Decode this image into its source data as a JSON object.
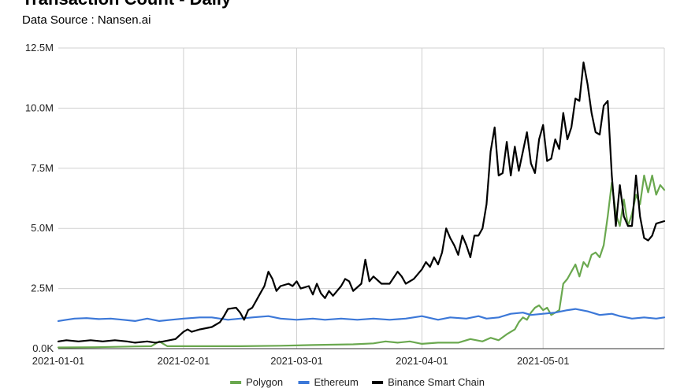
{
  "chart_data": {
    "type": "line",
    "title": "Transaction Count - Daily",
    "subtitle": "Data Source : Nansen.ai",
    "xlabel": "",
    "ylabel": "",
    "x_range": [
      "2021-01-01",
      "2021-05-31"
    ],
    "ylim": [
      0,
      12500000
    ],
    "y_ticks": [
      0,
      2500000,
      5000000,
      7500000,
      10000000,
      12500000
    ],
    "y_tick_labels": [
      "0.0K",
      "2.5M",
      "5.0M",
      "7.5M",
      "10.0M",
      "12.5M"
    ],
    "x_ticks": [
      "2021-01-01",
      "2021-02-01",
      "2021-03-01",
      "2021-04-01",
      "2021-05-01"
    ],
    "x_tick_labels": [
      "2021-01-01",
      "2021-02-01",
      "2021-03-01",
      "2021-04-01",
      "2021-05-01"
    ],
    "grid": true,
    "legend_position": "bottom",
    "series": [
      {
        "name": "Polygon",
        "color": "#6aa84f",
        "points": [
          [
            "2021-01-01",
            50000
          ],
          [
            "2021-01-10",
            60000
          ],
          [
            "2021-01-20",
            90000
          ],
          [
            "2021-01-24",
            100000
          ],
          [
            "2021-01-26",
            300000
          ],
          [
            "2021-01-27",
            200000
          ],
          [
            "2021-01-28",
            100000
          ],
          [
            "2021-02-05",
            100000
          ],
          [
            "2021-02-15",
            100000
          ],
          [
            "2021-02-25",
            120000
          ],
          [
            "2021-03-05",
            150000
          ],
          [
            "2021-03-15",
            180000
          ],
          [
            "2021-03-20",
            220000
          ],
          [
            "2021-03-23",
            300000
          ],
          [
            "2021-03-26",
            250000
          ],
          [
            "2021-03-29",
            300000
          ],
          [
            "2021-04-01",
            200000
          ],
          [
            "2021-04-05",
            250000
          ],
          [
            "2021-04-10",
            250000
          ],
          [
            "2021-04-13",
            400000
          ],
          [
            "2021-04-16",
            300000
          ],
          [
            "2021-04-18",
            450000
          ],
          [
            "2021-04-20",
            350000
          ],
          [
            "2021-04-22",
            600000
          ],
          [
            "2021-04-24",
            800000
          ],
          [
            "2021-04-25",
            1100000
          ],
          [
            "2021-04-26",
            1300000
          ],
          [
            "2021-04-27",
            1200000
          ],
          [
            "2021-04-28",
            1500000
          ],
          [
            "2021-04-29",
            1700000
          ],
          [
            "2021-04-30",
            1800000
          ],
          [
            "2021-05-01",
            1600000
          ],
          [
            "2021-05-02",
            1700000
          ],
          [
            "2021-05-03",
            1400000
          ],
          [
            "2021-05-04",
            1500000
          ],
          [
            "2021-05-05",
            1600000
          ],
          [
            "2021-05-06",
            2700000
          ],
          [
            "2021-05-07",
            2900000
          ],
          [
            "2021-05-08",
            3200000
          ],
          [
            "2021-05-09",
            3500000
          ],
          [
            "2021-05-10",
            3000000
          ],
          [
            "2021-05-11",
            3600000
          ],
          [
            "2021-05-12",
            3400000
          ],
          [
            "2021-05-13",
            3900000
          ],
          [
            "2021-05-14",
            4000000
          ],
          [
            "2021-05-15",
            3800000
          ],
          [
            "2021-05-16",
            4300000
          ],
          [
            "2021-05-17",
            5500000
          ],
          [
            "2021-05-18",
            6900000
          ],
          [
            "2021-05-19",
            5600000
          ],
          [
            "2021-05-20",
            5100000
          ],
          [
            "2021-05-21",
            6200000
          ],
          [
            "2021-05-22",
            5100000
          ],
          [
            "2021-05-23",
            5600000
          ],
          [
            "2021-05-24",
            6400000
          ],
          [
            "2021-05-25",
            6000000
          ],
          [
            "2021-05-26",
            7200000
          ],
          [
            "2021-05-27",
            6500000
          ],
          [
            "2021-05-28",
            7200000
          ],
          [
            "2021-05-29",
            6400000
          ],
          [
            "2021-05-30",
            6800000
          ],
          [
            "2021-05-31",
            6600000
          ]
        ]
      },
      {
        "name": "Ethereum",
        "color": "#3c78d8",
        "points": [
          [
            "2021-01-01",
            1150000
          ],
          [
            "2021-01-03",
            1200000
          ],
          [
            "2021-01-05",
            1250000
          ],
          [
            "2021-01-08",
            1270000
          ],
          [
            "2021-01-11",
            1230000
          ],
          [
            "2021-01-14",
            1250000
          ],
          [
            "2021-01-17",
            1200000
          ],
          [
            "2021-01-20",
            1150000
          ],
          [
            "2021-01-23",
            1250000
          ],
          [
            "2021-01-26",
            1150000
          ],
          [
            "2021-01-29",
            1200000
          ],
          [
            "2021-02-01",
            1250000
          ],
          [
            "2021-02-05",
            1300000
          ],
          [
            "2021-02-08",
            1300000
          ],
          [
            "2021-02-12",
            1200000
          ],
          [
            "2021-02-15",
            1250000
          ],
          [
            "2021-02-18",
            1300000
          ],
          [
            "2021-02-22",
            1350000
          ],
          [
            "2021-02-25",
            1250000
          ],
          [
            "2021-03-01",
            1200000
          ],
          [
            "2021-03-05",
            1250000
          ],
          [
            "2021-03-08",
            1200000
          ],
          [
            "2021-03-12",
            1250000
          ],
          [
            "2021-03-16",
            1200000
          ],
          [
            "2021-03-20",
            1250000
          ],
          [
            "2021-03-24",
            1200000
          ],
          [
            "2021-03-28",
            1250000
          ],
          [
            "2021-04-01",
            1350000
          ],
          [
            "2021-04-05",
            1200000
          ],
          [
            "2021-04-08",
            1300000
          ],
          [
            "2021-04-12",
            1250000
          ],
          [
            "2021-04-15",
            1350000
          ],
          [
            "2021-04-17",
            1250000
          ],
          [
            "2021-04-20",
            1300000
          ],
          [
            "2021-04-23",
            1450000
          ],
          [
            "2021-04-26",
            1500000
          ],
          [
            "2021-04-28",
            1400000
          ],
          [
            "2021-05-01",
            1450000
          ],
          [
            "2021-05-04",
            1500000
          ],
          [
            "2021-05-07",
            1600000
          ],
          [
            "2021-05-09",
            1650000
          ],
          [
            "2021-05-12",
            1550000
          ],
          [
            "2021-05-15",
            1400000
          ],
          [
            "2021-05-18",
            1450000
          ],
          [
            "2021-05-20",
            1350000
          ],
          [
            "2021-05-23",
            1250000
          ],
          [
            "2021-05-26",
            1300000
          ],
          [
            "2021-05-29",
            1250000
          ],
          [
            "2021-05-31",
            1300000
          ]
        ]
      },
      {
        "name": "Binance Smart Chain",
        "color": "#000000",
        "points": [
          [
            "2021-01-01",
            300000
          ],
          [
            "2021-01-03",
            350000
          ],
          [
            "2021-01-06",
            300000
          ],
          [
            "2021-01-09",
            350000
          ],
          [
            "2021-01-12",
            300000
          ],
          [
            "2021-01-15",
            350000
          ],
          [
            "2021-01-18",
            300000
          ],
          [
            "2021-01-20",
            250000
          ],
          [
            "2021-01-23",
            300000
          ],
          [
            "2021-01-25",
            250000
          ],
          [
            "2021-01-27",
            300000
          ],
          [
            "2021-01-30",
            400000
          ],
          [
            "2021-02-01",
            700000
          ],
          [
            "2021-02-02",
            800000
          ],
          [
            "2021-02-03",
            700000
          ],
          [
            "2021-02-05",
            800000
          ],
          [
            "2021-02-08",
            900000
          ],
          [
            "2021-02-10",
            1100000
          ],
          [
            "2021-02-11",
            1350000
          ],
          [
            "2021-02-12",
            1650000
          ],
          [
            "2021-02-14",
            1700000
          ],
          [
            "2021-02-15",
            1500000
          ],
          [
            "2021-02-16",
            1200000
          ],
          [
            "2021-02-17",
            1600000
          ],
          [
            "2021-02-18",
            1700000
          ],
          [
            "2021-02-19",
            2000000
          ],
          [
            "2021-02-20",
            2300000
          ],
          [
            "2021-02-21",
            2600000
          ],
          [
            "2021-02-22",
            3200000
          ],
          [
            "2021-02-23",
            2900000
          ],
          [
            "2021-02-24",
            2400000
          ],
          [
            "2021-02-25",
            2600000
          ],
          [
            "2021-02-27",
            2700000
          ],
          [
            "2021-02-28",
            2600000
          ],
          [
            "2021-03-01",
            2800000
          ],
          [
            "2021-03-02",
            2500000
          ],
          [
            "2021-03-04",
            2600000
          ],
          [
            "2021-03-05",
            2250000
          ],
          [
            "2021-03-06",
            2700000
          ],
          [
            "2021-03-07",
            2300000
          ],
          [
            "2021-03-08",
            2100000
          ],
          [
            "2021-03-09",
            2400000
          ],
          [
            "2021-03-10",
            2200000
          ],
          [
            "2021-03-12",
            2600000
          ],
          [
            "2021-03-13",
            2900000
          ],
          [
            "2021-03-14",
            2800000
          ],
          [
            "2021-03-15",
            2400000
          ],
          [
            "2021-03-17",
            2700000
          ],
          [
            "2021-03-18",
            3700000
          ],
          [
            "2021-03-19",
            2800000
          ],
          [
            "2021-03-20",
            3000000
          ],
          [
            "2021-03-22",
            2700000
          ],
          [
            "2021-03-24",
            2700000
          ],
          [
            "2021-03-26",
            3200000
          ],
          [
            "2021-03-27",
            3000000
          ],
          [
            "2021-03-28",
            2700000
          ],
          [
            "2021-03-30",
            2900000
          ],
          [
            "2021-04-01",
            3300000
          ],
          [
            "2021-04-02",
            3600000
          ],
          [
            "2021-04-03",
            3400000
          ],
          [
            "2021-04-04",
            3800000
          ],
          [
            "2021-04-05",
            3500000
          ],
          [
            "2021-04-06",
            4000000
          ],
          [
            "2021-04-07",
            5000000
          ],
          [
            "2021-04-08",
            4600000
          ],
          [
            "2021-04-09",
            4300000
          ],
          [
            "2021-04-10",
            3900000
          ],
          [
            "2021-04-11",
            4700000
          ],
          [
            "2021-04-12",
            4300000
          ],
          [
            "2021-04-13",
            3800000
          ],
          [
            "2021-04-14",
            4700000
          ],
          [
            "2021-04-15",
            4700000
          ],
          [
            "2021-04-16",
            5000000
          ],
          [
            "2021-04-17",
            6000000
          ],
          [
            "2021-04-18",
            8200000
          ],
          [
            "2021-04-19",
            9200000
          ],
          [
            "2021-04-20",
            7200000
          ],
          [
            "2021-04-21",
            7300000
          ],
          [
            "2021-04-22",
            8600000
          ],
          [
            "2021-04-23",
            7200000
          ],
          [
            "2021-04-24",
            8400000
          ],
          [
            "2021-04-25",
            7400000
          ],
          [
            "2021-04-26",
            8200000
          ],
          [
            "2021-04-27",
            9000000
          ],
          [
            "2021-04-28",
            7700000
          ],
          [
            "2021-04-29",
            7300000
          ],
          [
            "2021-04-30",
            8700000
          ],
          [
            "2021-05-01",
            9300000
          ],
          [
            "2021-05-02",
            7800000
          ],
          [
            "2021-05-03",
            7900000
          ],
          [
            "2021-05-04",
            8700000
          ],
          [
            "2021-05-05",
            8300000
          ],
          [
            "2021-05-06",
            9800000
          ],
          [
            "2021-05-07",
            8700000
          ],
          [
            "2021-05-08",
            9200000
          ],
          [
            "2021-05-09",
            10400000
          ],
          [
            "2021-05-10",
            10300000
          ],
          [
            "2021-05-11",
            11900000
          ],
          [
            "2021-05-12",
            11000000
          ],
          [
            "2021-05-13",
            9800000
          ],
          [
            "2021-05-14",
            9000000
          ],
          [
            "2021-05-15",
            8900000
          ],
          [
            "2021-05-16",
            10100000
          ],
          [
            "2021-05-17",
            10300000
          ],
          [
            "2021-05-18",
            7200000
          ],
          [
            "2021-05-19",
            5100000
          ],
          [
            "2021-05-20",
            6800000
          ],
          [
            "2021-05-21",
            5500000
          ],
          [
            "2021-05-22",
            5100000
          ],
          [
            "2021-05-23",
            5100000
          ],
          [
            "2021-05-24",
            7200000
          ],
          [
            "2021-05-25",
            5500000
          ],
          [
            "2021-05-26",
            4600000
          ],
          [
            "2021-05-27",
            4500000
          ],
          [
            "2021-05-28",
            4700000
          ],
          [
            "2021-05-29",
            5200000
          ],
          [
            "2021-05-31",
            5300000
          ]
        ]
      }
    ]
  }
}
